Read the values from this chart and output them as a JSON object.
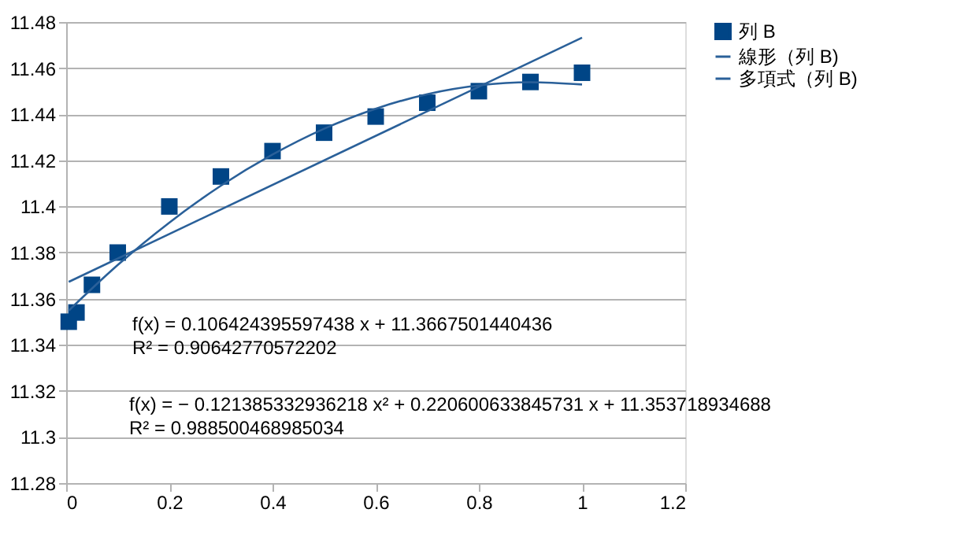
{
  "chart_data": {
    "type": "scatter",
    "x": [
      0.005,
      0.02,
      0.05,
      0.1,
      0.2,
      0.3,
      0.4,
      0.5,
      0.6,
      0.7,
      0.8,
      0.9,
      1.0
    ],
    "series": [
      {
        "name": "列 B",
        "color": "#004586",
        "marker": "square",
        "values": [
          11.35,
          11.354,
          11.366,
          11.38,
          11.4,
          11.413,
          11.424,
          11.432,
          11.439,
          11.445,
          11.45,
          11.454,
          11.458
        ]
      },
      {
        "name": "線形（列 B)",
        "type": "line",
        "color": "#2a6099",
        "x": [
          0.005,
          1.0
        ],
        "values": [
          11.3673,
          11.4732
        ]
      },
      {
        "name": "多項式（列 B)",
        "type": "line",
        "color": "#2a6099",
        "x": [
          0.005,
          0.01,
          0.05,
          0.1,
          0.2,
          0.3,
          0.4,
          0.5,
          0.6,
          0.7,
          0.8,
          0.9,
          1.0
        ],
        "values": [
          11.3548,
          11.3559,
          11.3644,
          11.3746,
          11.393,
          11.409,
          11.4225,
          11.4337,
          11.4424,
          11.4487,
          11.4525,
          11.4539,
          11.4529
        ]
      }
    ],
    "xlim": [
      0,
      1.2
    ],
    "xticks": [
      0,
      0.2,
      0.4,
      0.6,
      0.8,
      1,
      1.2
    ],
    "ylim": [
      11.28,
      11.48
    ],
    "yticks": [
      11.28,
      11.3,
      11.32,
      11.34,
      11.36,
      11.38,
      11.4,
      11.42,
      11.44,
      11.46,
      11.48
    ],
    "grid": "y",
    "legend": "right",
    "annotations": [
      "f(x) = 0.106424395597438 x + 11.3667501440436",
      "R² = 0.90642770572202",
      "f(x) = − 0.121385332936218 x² + 0.220600633845731 x + 11.353718934688",
      "R² = 0.988500468985034"
    ]
  }
}
